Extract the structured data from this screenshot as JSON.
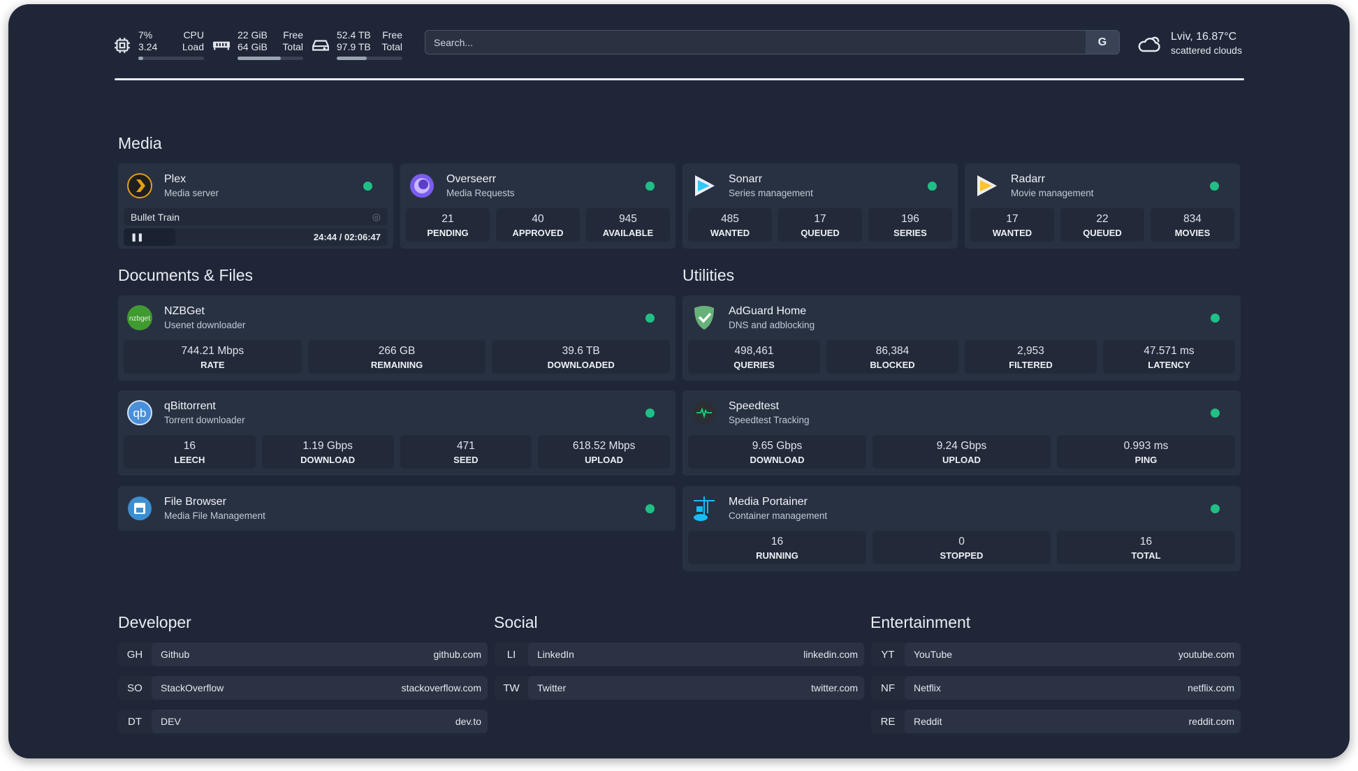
{
  "resources": {
    "cpu": {
      "icon": "cpu-icon",
      "v1": "7%",
      "v2": "3.24",
      "l1": "CPU",
      "l2": "Load",
      "usage": 0.07
    },
    "memory": {
      "icon": "memory-icon",
      "v1": "22 GiB",
      "v2": "64 GiB",
      "l1": "Free",
      "l2": "Total",
      "usage": 0.66
    },
    "disk": {
      "icon": "disk-icon",
      "v1": "52.4 TB",
      "v2": "97.9 TB",
      "l1": "Free",
      "l2": "Total",
      "usage": 0.46
    }
  },
  "search": {
    "placeholder": "Search...",
    "provider": "G"
  },
  "weather": {
    "icon": "cloud-icon",
    "location_temp": "Lviv, 16.87°C",
    "condition": "scattered clouds"
  },
  "colors": {
    "background": "#1f2637",
    "card": "#283142",
    "status_ok": "#1fbf86"
  },
  "sections": {
    "media": "Media",
    "documents": "Documents & Files",
    "utilities": "Utilities",
    "developer": "Developer",
    "social": "Social",
    "entertainment": "Entertainment"
  },
  "services": {
    "plex": {
      "name": "Plex",
      "desc": "Media server",
      "icon": "plex-icon",
      "now_playing": {
        "title": "Bullet Train",
        "time": "24:44 / 02:06:47",
        "progress": 0.195
      }
    },
    "overseerr": {
      "name": "Overseerr",
      "desc": "Media Requests",
      "icon": "overseerr-icon",
      "stats": [
        {
          "v": "21",
          "l": "PENDING"
        },
        {
          "v": "40",
          "l": "APPROVED"
        },
        {
          "v": "945",
          "l": "AVAILABLE"
        }
      ]
    },
    "sonarr": {
      "name": "Sonarr",
      "desc": "Series management",
      "icon": "sonarr-icon",
      "stats": [
        {
          "v": "485",
          "l": "WANTED"
        },
        {
          "v": "17",
          "l": "QUEUED"
        },
        {
          "v": "196",
          "l": "SERIES"
        }
      ]
    },
    "radarr": {
      "name": "Radarr",
      "desc": "Movie management",
      "icon": "radarr-icon",
      "stats": [
        {
          "v": "17",
          "l": "WANTED"
        },
        {
          "v": "22",
          "l": "QUEUED"
        },
        {
          "v": "834",
          "l": "MOVIES"
        }
      ]
    },
    "nzbget": {
      "name": "NZBGet",
      "desc": "Usenet downloader",
      "icon": "nzbget-icon",
      "stats": [
        {
          "v": "744.21 Mbps",
          "l": "RATE"
        },
        {
          "v": "266 GB",
          "l": "REMAINING"
        },
        {
          "v": "39.6 TB",
          "l": "DOWNLOADED"
        }
      ]
    },
    "qbittorrent": {
      "name": "qBittorrent",
      "desc": "Torrent downloader",
      "icon": "qbittorrent-icon",
      "stats": [
        {
          "v": "16",
          "l": "LEECH"
        },
        {
          "v": "1.19 Gbps",
          "l": "DOWNLOAD"
        },
        {
          "v": "471",
          "l": "SEED"
        },
        {
          "v": "618.52 Mbps",
          "l": "UPLOAD"
        }
      ]
    },
    "filebrowser": {
      "name": "File Browser",
      "desc": "Media File Management",
      "icon": "filebrowser-icon"
    },
    "adguard": {
      "name": "AdGuard Home",
      "desc": "DNS and adblocking",
      "icon": "adguard-icon",
      "stats": [
        {
          "v": "498,461",
          "l": "QUERIES"
        },
        {
          "v": "86,384",
          "l": "BLOCKED"
        },
        {
          "v": "2,953",
          "l": "FILTERED"
        },
        {
          "v": "47.571 ms",
          "l": "LATENCY"
        }
      ]
    },
    "speedtest": {
      "name": "Speedtest",
      "desc": "Speedtest Tracking",
      "icon": "speedtest-icon",
      "stats": [
        {
          "v": "9.65 Gbps",
          "l": "DOWNLOAD"
        },
        {
          "v": "9.24 Gbps",
          "l": "UPLOAD"
        },
        {
          "v": "0.993 ms",
          "l": "PING"
        }
      ]
    },
    "portainer": {
      "name": "Media Portainer",
      "desc": "Container management",
      "icon": "portainer-icon",
      "stats": [
        {
          "v": "16",
          "l": "RUNNING"
        },
        {
          "v": "0",
          "l": "STOPPED"
        },
        {
          "v": "16",
          "l": "TOTAL"
        }
      ]
    }
  },
  "bookmarks": {
    "developer": [
      {
        "abbr": "GH",
        "name": "Github",
        "url": "github.com"
      },
      {
        "abbr": "SO",
        "name": "StackOverflow",
        "url": "stackoverflow.com"
      },
      {
        "abbr": "DT",
        "name": "DEV",
        "url": "dev.to"
      }
    ],
    "social": [
      {
        "abbr": "LI",
        "name": "LinkedIn",
        "url": "linkedin.com"
      },
      {
        "abbr": "TW",
        "name": "Twitter",
        "url": "twitter.com"
      }
    ],
    "entertainment": [
      {
        "abbr": "YT",
        "name": "YouTube",
        "url": "youtube.com"
      },
      {
        "abbr": "NF",
        "name": "Netflix",
        "url": "netflix.com"
      },
      {
        "abbr": "RE",
        "name": "Reddit",
        "url": "reddit.com"
      }
    ]
  }
}
